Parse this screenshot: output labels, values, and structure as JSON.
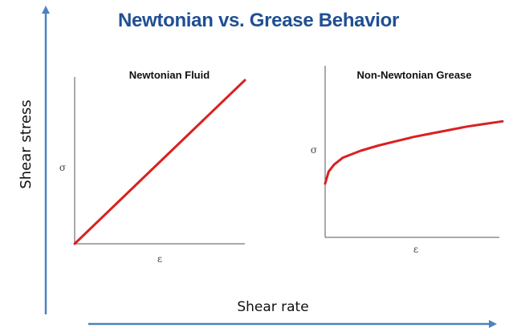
{
  "title": "Newtonian vs. Grease Behavior",
  "colors": {
    "title": "#1f4f93",
    "outer_axis": "#4f81bd",
    "curve": "#d92121",
    "panel_axis": "#555555"
  },
  "outer_axes": {
    "xlabel": "Shear rate",
    "ylabel": "Shear stress"
  },
  "chart_data": [
    {
      "type": "line",
      "title": "Newtonian Fluid",
      "xlabel": "ε",
      "ylabel": "σ",
      "xlim": [
        0,
        1
      ],
      "ylim": [
        0,
        1
      ],
      "grid": false,
      "series": [
        {
          "x": [
            0,
            0.25,
            0.5,
            0.75,
            1.0
          ],
          "y": [
            0,
            0.25,
            0.5,
            0.75,
            1.0
          ]
        }
      ]
    },
    {
      "type": "line",
      "title": "Non-Newtonian Grease",
      "xlabel": "ε",
      "ylabel": "σ",
      "xlim": [
        0,
        1
      ],
      "ylim": [
        0,
        1
      ],
      "grid": false,
      "series": [
        {
          "x": [
            0,
            0.02,
            0.05,
            0.1,
            0.2,
            0.3,
            0.4,
            0.5,
            0.6,
            0.7,
            0.8,
            0.9,
            1.0
          ],
          "y": [
            0.31,
            0.38,
            0.42,
            0.46,
            0.5,
            0.53,
            0.555,
            0.58,
            0.6,
            0.62,
            0.64,
            0.655,
            0.67
          ]
        }
      ]
    }
  ]
}
